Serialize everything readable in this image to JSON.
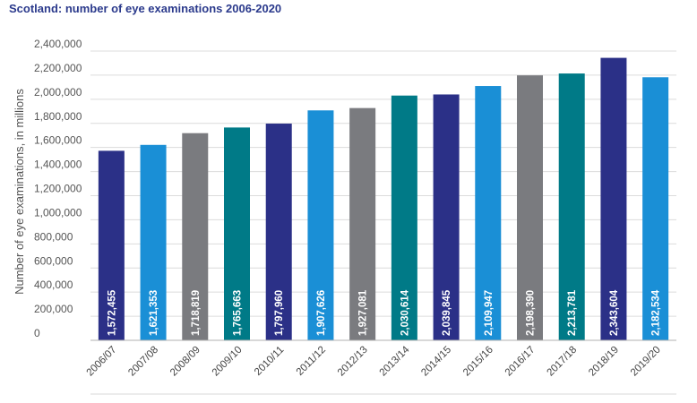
{
  "chart_data": {
    "type": "bar",
    "title": "Scotland: number of eye examinations 2006-2020",
    "xlabel": "",
    "ylabel": "Number of eye examinations, in millions",
    "ylim": [
      0,
      2400000
    ],
    "yticks": [
      0,
      200000,
      400000,
      600000,
      800000,
      1000000,
      1200000,
      1400000,
      1600000,
      1800000,
      2000000,
      2200000,
      2400000
    ],
    "ytick_labels": [
      "0",
      "200,000",
      "400,000",
      "600,000",
      "800,000",
      "1,000,000",
      "1,200,000",
      "1,400,000",
      "1,600,000",
      "1,800,000",
      "2,000,000",
      "2,200,000",
      "2,400,000"
    ],
    "grid": true,
    "categories": [
      "2006/07",
      "2007/08",
      "2008/09",
      "2009/10",
      "2010/11",
      "2011/12",
      "2012/13",
      "2013/14",
      "2014/15",
      "2015/16",
      "2016/17",
      "2017/18",
      "2018/19",
      "2019/20"
    ],
    "values": [
      1572455,
      1621353,
      1718819,
      1765663,
      1797960,
      1907626,
      1927081,
      2030614,
      2039845,
      2109947,
      2198390,
      2213781,
      2343604,
      2182534
    ],
    "value_labels": [
      "1,572,455",
      "1,621,353",
      "1,718,819",
      "1,765,663",
      "1,797,960",
      "1,907,626",
      "1,927,081",
      "2,030,614",
      "2,039,845",
      "2,109,947",
      "2,198,390",
      "2,213,781",
      "2,343,604",
      "2,182,534"
    ],
    "bar_colors": [
      "#2b3087",
      "#1a8fd6",
      "#7a7b7f",
      "#007a87",
      "#2b3087",
      "#1a8fd6",
      "#7a7b7f",
      "#007a87",
      "#2b3087",
      "#1a8fd6",
      "#7a7b7f",
      "#007a87",
      "#2b3087",
      "#1a8fd6"
    ]
  }
}
